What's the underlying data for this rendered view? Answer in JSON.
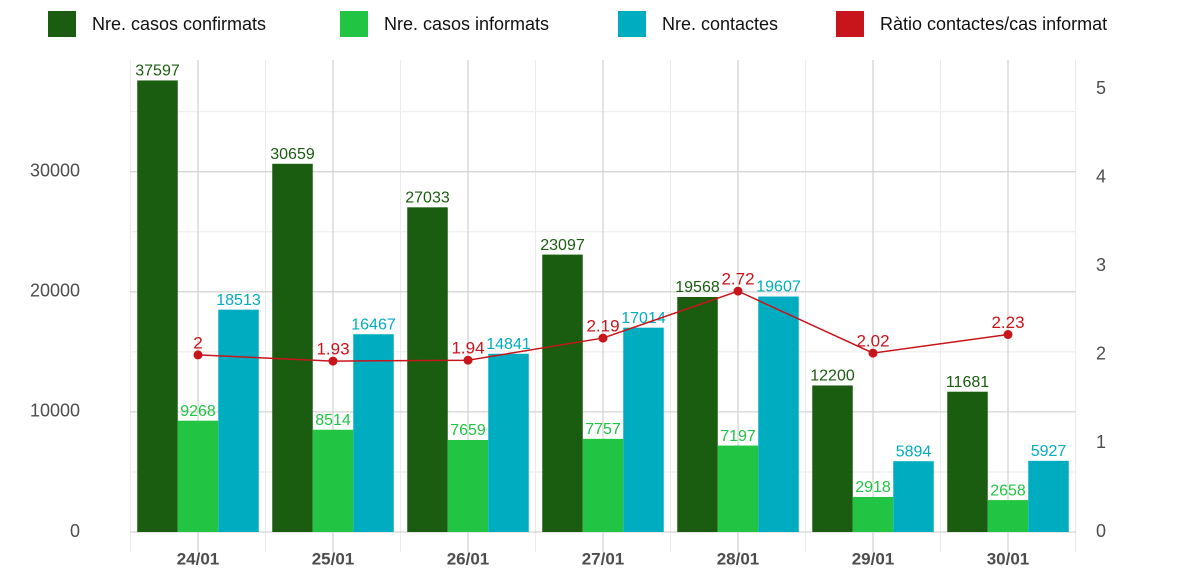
{
  "chart_data": {
    "type": "bar",
    "categories": [
      "24/01",
      "25/01",
      "26/01",
      "27/01",
      "28/01",
      "29/01",
      "30/01"
    ],
    "series": [
      {
        "name": "Nre. casos confirmats",
        "color": "#1a5c10",
        "values": [
          37597,
          30659,
          27033,
          23097,
          19568,
          12200,
          11681
        ]
      },
      {
        "name": "Nre. casos informats",
        "color": "#22c444",
        "values": [
          9268,
          8514,
          7659,
          7757,
          7197,
          2918,
          2658
        ]
      },
      {
        "name": "Nre. contactes",
        "color": "#00adc0",
        "values": [
          18513,
          16467,
          14841,
          17014,
          19607,
          5894,
          5927
        ]
      },
      {
        "name": "Ràtio contactes/cas informat",
        "color": "#c8151b",
        "type": "line",
        "axis": "y2",
        "values": [
          2,
          1.93,
          1.94,
          2.19,
          2.72,
          2.02,
          2.23
        ]
      }
    ],
    "ylim": [
      0,
      39300
    ],
    "yticks": [
      0,
      10000,
      20000,
      30000
    ],
    "y2lim": [
      0,
      5.33
    ],
    "y2ticks": [
      0,
      1,
      2,
      3,
      4,
      5
    ],
    "grid": true,
    "legend": "top"
  }
}
